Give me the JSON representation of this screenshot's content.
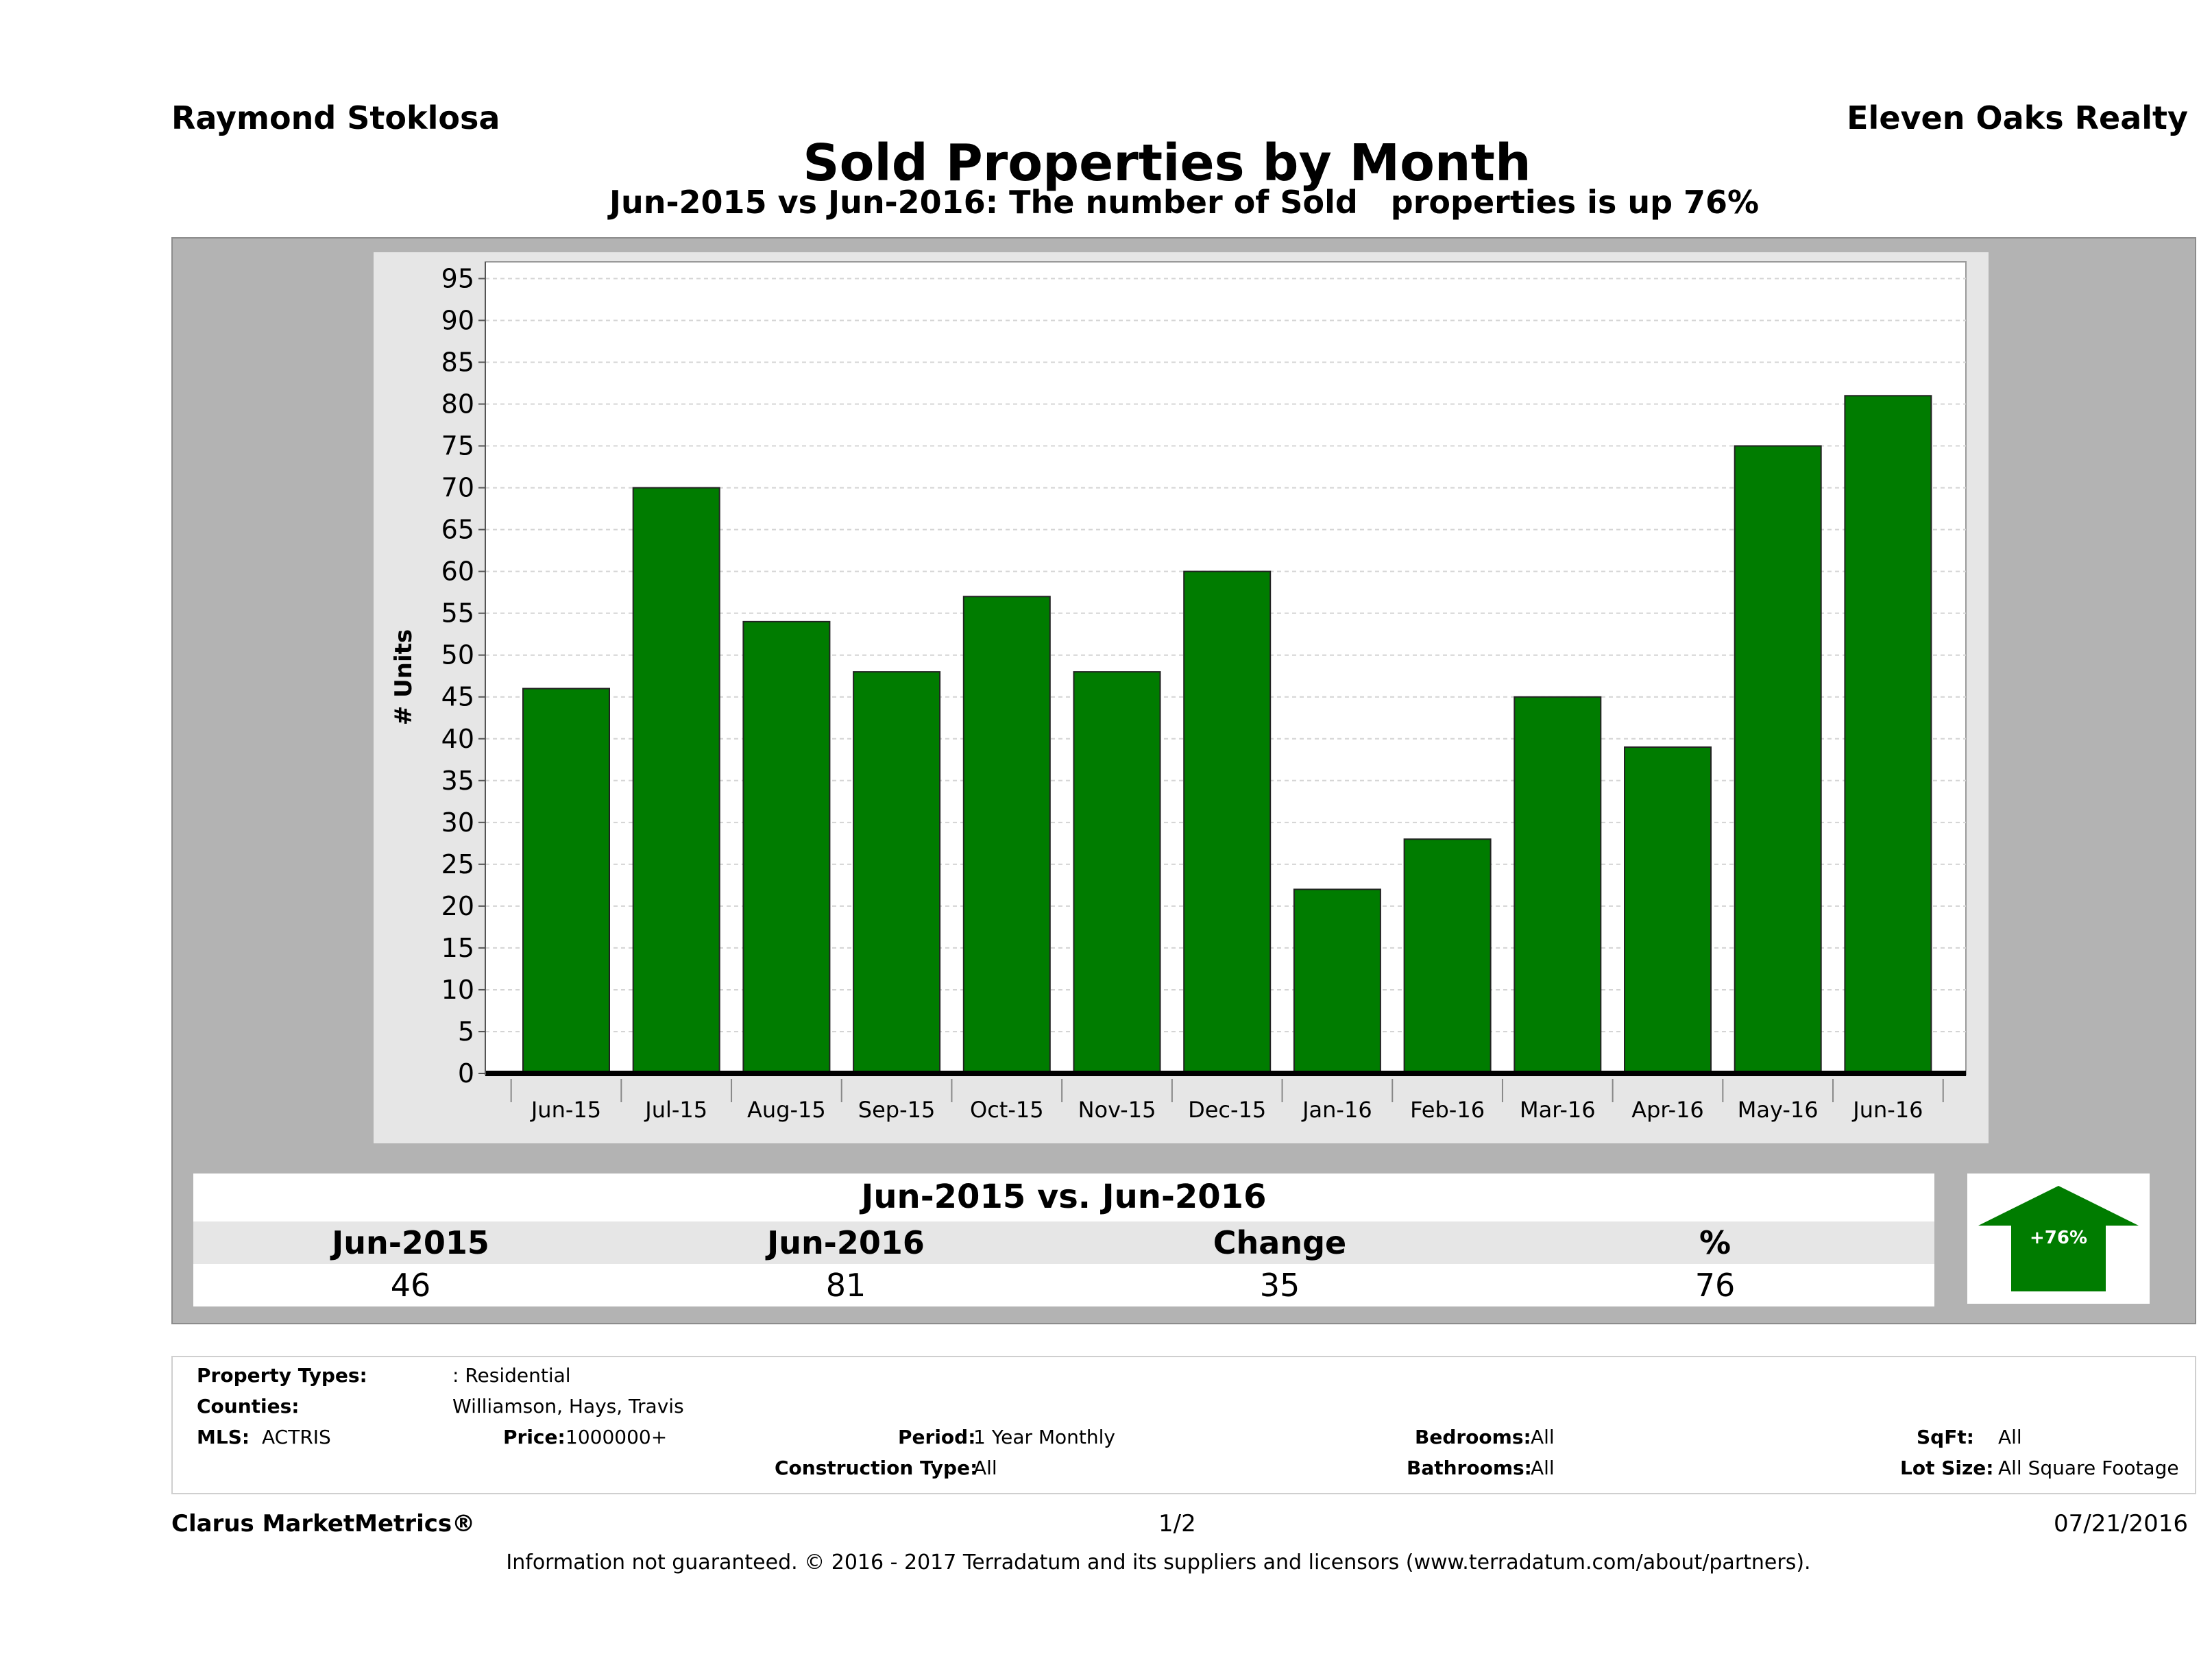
{
  "header": {
    "agent": "Raymond Stoklosa",
    "office": "Eleven Oaks Realty",
    "title": "Sold Properties by Month",
    "subtitle": "Jun-2015 vs Jun-2016: The number of Sold   properties is up 76%"
  },
  "chart_data": {
    "type": "bar",
    "categories": [
      "Jun-15",
      "Jul-15",
      "Aug-15",
      "Sep-15",
      "Oct-15",
      "Nov-15",
      "Dec-15",
      "Jan-16",
      "Feb-16",
      "Mar-16",
      "Apr-16",
      "May-16",
      "Jun-16"
    ],
    "values": [
      46,
      70,
      54,
      48,
      57,
      48,
      60,
      22,
      28,
      45,
      39,
      75,
      81
    ],
    "title": "",
    "xlabel": "",
    "ylabel": "# Units",
    "ylim": [
      0,
      97
    ],
    "yticks": [
      0,
      5,
      10,
      15,
      20,
      25,
      30,
      35,
      40,
      45,
      50,
      55,
      60,
      65,
      70,
      75,
      80,
      85,
      90,
      95
    ],
    "grid": true,
    "bar_color": "#007c00"
  },
  "comparison": {
    "title": "Jun-2015 vs. Jun-2016",
    "headers": [
      "Jun-2015",
      "Jun-2016",
      "Change",
      "%"
    ],
    "values": [
      "46",
      "81",
      "35",
      "76"
    ],
    "badge": "+76%",
    "badge_color": "#007c00"
  },
  "filters": {
    "property_types_label": "Property Types:",
    "property_types_value": ": Residential",
    "counties_label": "Counties:",
    "counties_value": "Williamson, Hays, Travis",
    "mls_label": "MLS:",
    "mls_value": "ACTRIS",
    "price_label": "Price:",
    "price_value": "1000000+",
    "period_label": "Period:",
    "period_value": "1 Year Monthly",
    "construction_label": "Construction Type:",
    "construction_value": "All",
    "bedrooms_label": "Bedrooms:",
    "bedrooms_value": "All",
    "bathrooms_label": "Bathrooms:",
    "bathrooms_value": "All",
    "sqft_label": "SqFt:",
    "sqft_value": "All",
    "lot_label": "Lot Size:",
    "lot_value": "All Square Footage"
  },
  "footer": {
    "brand": "Clarus MarketMetrics®",
    "page": "1/2",
    "date": "07/21/2016",
    "disclaimer": "Information not guaranteed. © 2016 - 2017 Terradatum and its suppliers and licensors (www.terradatum.com/about/partners)."
  }
}
